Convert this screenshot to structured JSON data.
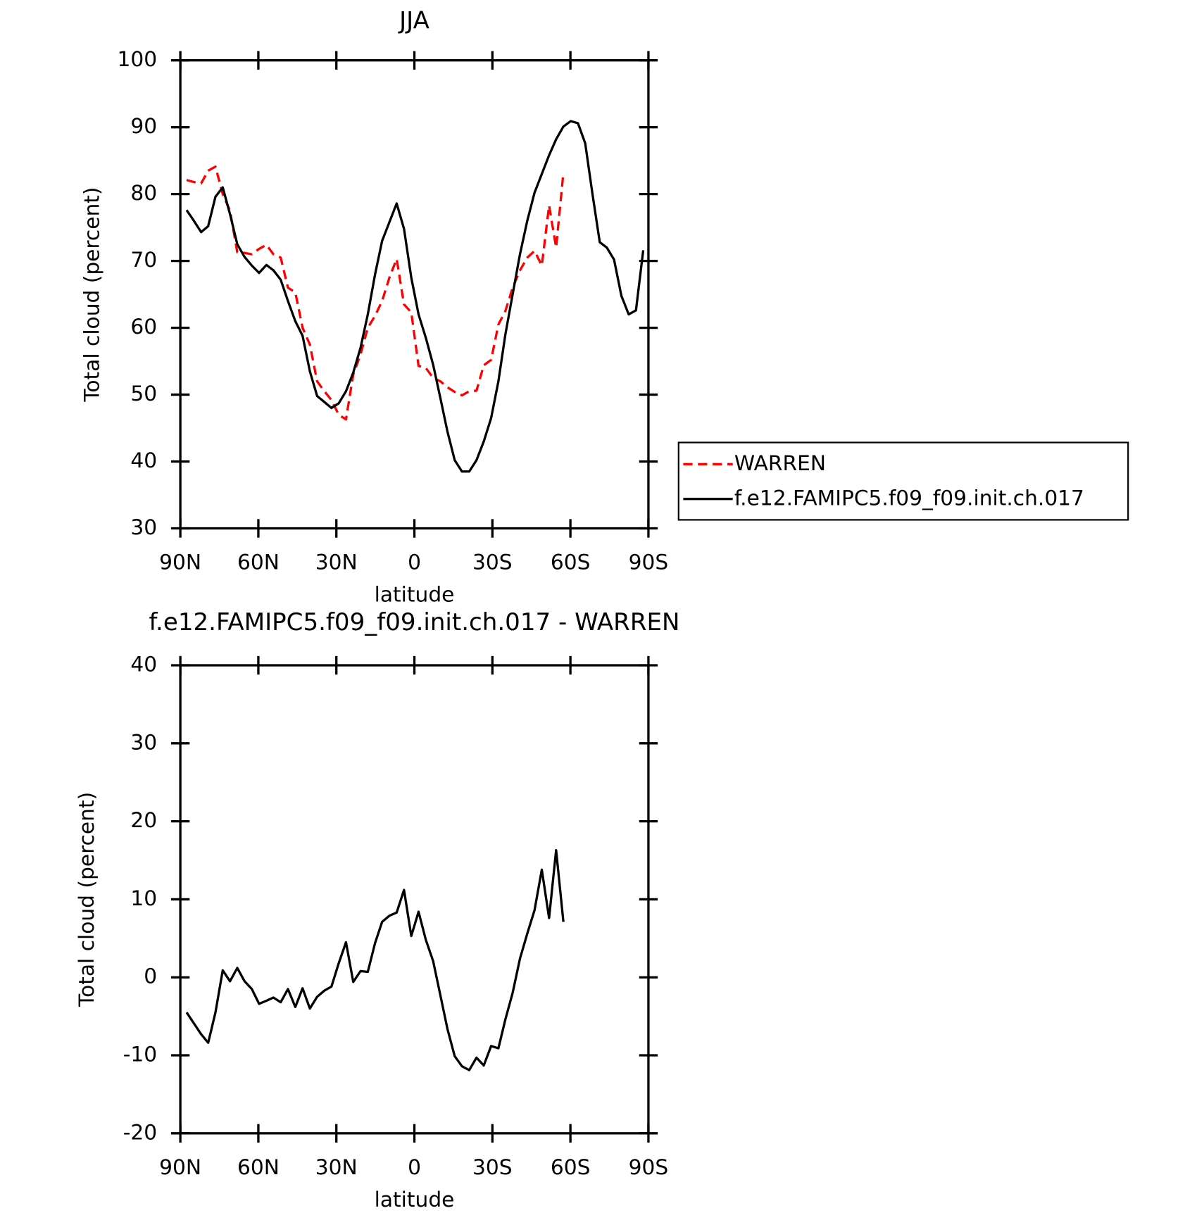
{
  "chart_data": [
    {
      "type": "line",
      "title": "JJA",
      "xlabel": "latitude",
      "ylabel": "Total cloud (percent)",
      "x": [
        87.6,
        84.8,
        82.0,
        79.3,
        76.5,
        73.7,
        70.9,
        68.1,
        65.3,
        62.5,
        59.7,
        56.9,
        54.2,
        51.4,
        48.6,
        45.8,
        43.0,
        40.2,
        37.4,
        34.6,
        31.9,
        29.1,
        26.3,
        23.5,
        20.7,
        17.9,
        15.1,
        12.4,
        9.6,
        6.8,
        4.0,
        1.2,
        -1.6,
        -4.4,
        -7.2,
        -10.0,
        -12.7,
        -15.5,
        -18.3,
        -21.1,
        -23.9,
        -26.7,
        -29.5,
        -32.3,
        -35.0,
        -37.8,
        -40.6,
        -43.4,
        -46.2,
        -49.0,
        -51.8,
        -54.5,
        -57.3,
        -60.1,
        -62.9,
        -65.7,
        -68.5,
        -71.3,
        -74.0,
        -76.8,
        -79.6,
        -82.4,
        -85.2,
        -88.0
      ],
      "series": [
        {
          "name": "WARREN",
          "color": "#ff0000",
          "linestyle": "dashed",
          "values": [
            82.1,
            81.8,
            81.6,
            83.5,
            84.1,
            80,
            77.5,
            71.3,
            71.2,
            71,
            71.8,
            72.4,
            71,
            70.5,
            66,
            65.3,
            60,
            57.5,
            52,
            50.5,
            49.2,
            47,
            46.3,
            53,
            56,
            60,
            61.8,
            64,
            67.5,
            70.3,
            63.5,
            62.3,
            54.3,
            54,
            52.5,
            52,
            51.1,
            50.4,
            49.9,
            50.5,
            50.6,
            54.4,
            55.2,
            60.5,
            62.5,
            66,
            68.6,
            70.5,
            71.5,
            69.3,
            78.3,
            72,
            83.2,
            null,
            null,
            null,
            null,
            null,
            null,
            null,
            null,
            null,
            null,
            null
          ]
        },
        {
          "name": "f.e12.FAMIPC5.f09_f09.init.ch.017",
          "color": "#000000",
          "linestyle": "solid",
          "values": [
            77.6,
            76.0,
            74.3,
            75.2,
            79.6,
            81.0,
            77,
            72.5,
            70.6,
            69.3,
            68.2,
            69.4,
            68.6,
            67.2,
            64,
            61,
            58.8,
            53.5,
            49.8,
            48.9,
            48,
            48.7,
            50.5,
            53.3,
            57,
            62,
            68,
            73,
            75.8,
            78.6,
            74.8,
            67.5,
            62,
            58.5,
            54.5,
            49.5,
            44.5,
            40.2,
            38.5,
            38.5,
            40.2,
            43,
            46.5,
            52,
            59,
            65,
            71,
            76,
            80.2,
            83,
            85.8,
            88.2,
            90.1,
            90.9,
            90.6,
            87.6,
            80,
            72.8,
            72,
            70.2,
            64.8,
            62,
            62.6,
            71.6
          ]
        }
      ],
      "xlim": [
        90,
        -90
      ],
      "xticks": [
        {
          "value": 90,
          "label": "90N"
        },
        {
          "value": 60,
          "label": "60N"
        },
        {
          "value": 30,
          "label": "30N"
        },
        0,
        {
          "value": -30,
          "label": "30S"
        },
        {
          "value": -60,
          "label": "60S"
        },
        {
          "value": -90,
          "label": "90S"
        }
      ],
      "ylim": [
        30,
        100
      ],
      "yticks": [
        30,
        40,
        50,
        60,
        70,
        80,
        90,
        100
      ],
      "legend": "right"
    },
    {
      "type": "line",
      "title": "f.e12.FAMIPC5.f09_f09.init.ch.017 - WARREN",
      "xlabel": "latitude",
      "ylabel": "Total cloud (percent)",
      "x": [
        87.6,
        84.8,
        82.0,
        79.3,
        76.5,
        73.7,
        70.9,
        68.1,
        65.3,
        62.5,
        59.7,
        56.9,
        54.2,
        51.4,
        48.6,
        45.8,
        43.0,
        40.2,
        37.4,
        34.6,
        31.9,
        29.1,
        26.3,
        23.5,
        20.7,
        17.9,
        15.1,
        12.4,
        9.6,
        6.8,
        4.0,
        1.2,
        -1.6,
        -4.4,
        -7.2,
        -10.0,
        -12.7,
        -15.5,
        -18.3,
        -21.1,
        -23.9,
        -26.7,
        -29.5,
        -32.3,
        -35.0,
        -37.8,
        -40.6,
        -43.4,
        -46.2,
        -49.0,
        -51.8,
        -54.5,
        -57.3
      ],
      "series": [
        {
          "color": "#000000",
          "linestyle": "solid",
          "values": [
            -4.5,
            -5.9,
            -7.3,
            -8.4,
            -4.5,
            0.9,
            -0.5,
            1.2,
            -0.5,
            -1.5,
            -3.4,
            -3,
            -2.6,
            -3.2,
            -1.5,
            -3.8,
            -1.4,
            -4,
            -2.5,
            -1.7,
            -1.2,
            1.8,
            4.5,
            -0.6,
            0.8,
            0.7,
            4.4,
            7.1,
            7.9,
            8.3,
            11.2,
            5.3,
            8.4,
            4.8,
            2.1,
            -2.3,
            -6.6,
            -10.1,
            -11.4,
            -11.9,
            -10.3,
            -11.3,
            -8.8,
            -9.1,
            -5.4,
            -2,
            2.4,
            5.6,
            8.6,
            13.8,
            7.6,
            16.3,
            7.1
          ]
        }
      ],
      "xlim": [
        90,
        -90
      ],
      "xticks": [
        {
          "value": 90,
          "label": "90N"
        },
        {
          "value": 60,
          "label": "60N"
        },
        {
          "value": 30,
          "label": "30N"
        },
        0,
        {
          "value": -30,
          "label": "30S"
        },
        {
          "value": -60,
          "label": "60S"
        },
        {
          "value": -90,
          "label": "90S"
        }
      ],
      "ylim": [
        -20,
        40
      ],
      "yticks": [
        -20,
        -10,
        0,
        10,
        20,
        30,
        40
      ]
    }
  ]
}
